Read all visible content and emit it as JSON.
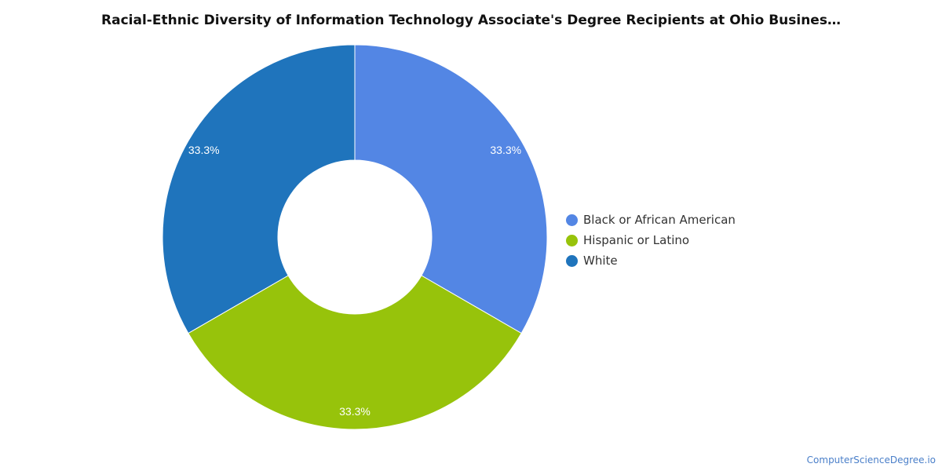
{
  "chart_data": {
    "type": "pie",
    "title": "Racial-Ethnic Diversity of Information Technology Associate's Degree Recipients at Ohio Busines…",
    "donut": true,
    "categories": [
      "Black or African American",
      "Hispanic or Latino",
      "White"
    ],
    "values": [
      33.3,
      33.3,
      33.3
    ],
    "labels": [
      "33.3%",
      "33.3%",
      "33.3%"
    ],
    "colors": [
      "#5386e4",
      "#97c30b",
      "#1f74bc"
    ],
    "legend_position": "right"
  },
  "footer": {
    "credit": "ComputerScienceDegree.io"
  }
}
